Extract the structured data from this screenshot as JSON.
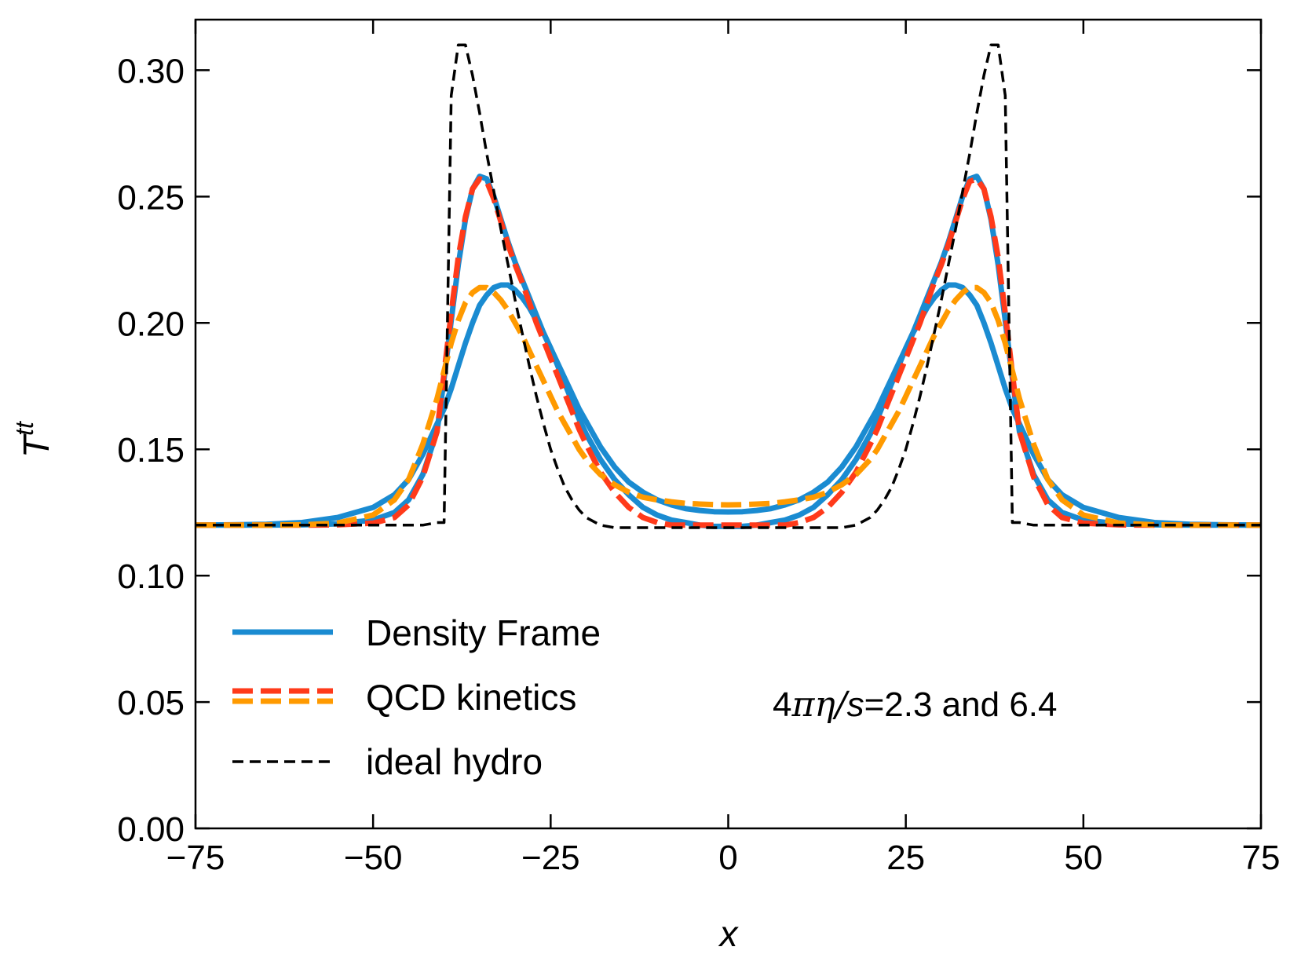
{
  "chart_data": {
    "type": "line",
    "title": "",
    "xlabel": "x",
    "ylabel": "T",
    "ylabel_superscript": "tt",
    "xlim": [
      -75,
      75
    ],
    "ylim": [
      0,
      0.32
    ],
    "x_ticks": [
      -75,
      -50,
      -25,
      0,
      25,
      50,
      75
    ],
    "x_tick_labels": [
      "−75",
      "−50",
      "−25",
      "0",
      "25",
      "50",
      "75"
    ],
    "y_ticks": [
      0,
      0.05,
      0.1,
      0.15,
      0.2,
      0.25,
      0.3
    ],
    "y_tick_labels": [
      "0.00",
      "0.05",
      "0.10",
      "0.15",
      "0.20",
      "0.25",
      "0.30"
    ],
    "grid": false,
    "legend_position": "lower-left",
    "legend": [
      {
        "label": "Density Frame",
        "style": "solid",
        "colors": [
          "#1a8bd1"
        ]
      },
      {
        "label": "QCD kinetics",
        "style": "dashed",
        "colors": [
          "#ff3a1a",
          "#ff9a00"
        ]
      },
      {
        "label": "ideal hydro",
        "style": "dashed-thin",
        "colors": [
          "#000000"
        ]
      }
    ],
    "annotation": {
      "pre": "4",
      "math": "πη/",
      "var": "s",
      "post": "=2.3 and 6.4"
    },
    "x": [
      -75,
      -70,
      -65,
      -60,
      -55,
      -50,
      -47,
      -45,
      -43,
      -41,
      -40,
      -39,
      -38,
      -37,
      -36,
      -35,
      -34,
      -33,
      -32,
      -31,
      -30,
      -29,
      -28,
      -27,
      -26,
      -25,
      -24,
      -23,
      -22,
      -21,
      -20,
      -18,
      -16,
      -14,
      -12,
      -10,
      -8,
      -6,
      -4,
      -2,
      0,
      2,
      4,
      6,
      8,
      10,
      12,
      14,
      16,
      18,
      20,
      21,
      22,
      23,
      24,
      25,
      26,
      27,
      28,
      29,
      30,
      31,
      32,
      33,
      34,
      35,
      36,
      37,
      38,
      39,
      40,
      41,
      43,
      45,
      47,
      50,
      55,
      60,
      65,
      70,
      75
    ],
    "series": [
      {
        "name": "Density Frame (4πη/s=2.3)",
        "color": "#1a8bd1",
        "style": "solid",
        "values": [
          0.12,
          0.12,
          0.12,
          0.1201,
          0.1205,
          0.122,
          0.125,
          0.13,
          0.14,
          0.157,
          0.178,
          0.201,
          0.223,
          0.241,
          0.253,
          0.258,
          0.257,
          0.25,
          0.241,
          0.232,
          0.224,
          0.217,
          0.21,
          0.203,
          0.196,
          0.19,
          0.183,
          0.176,
          0.169,
          0.162,
          0.156,
          0.146,
          0.138,
          0.132,
          0.127,
          0.124,
          0.122,
          0.121,
          0.12,
          0.1195,
          0.1195,
          0.1195,
          0.12,
          0.121,
          0.122,
          0.124,
          0.127,
          0.132,
          0.138,
          0.146,
          0.156,
          0.162,
          0.169,
          0.176,
          0.183,
          0.19,
          0.196,
          0.203,
          0.21,
          0.217,
          0.224,
          0.232,
          0.241,
          0.25,
          0.257,
          0.258,
          0.253,
          0.241,
          0.223,
          0.201,
          0.178,
          0.157,
          0.14,
          0.13,
          0.125,
          0.122,
          0.1205,
          0.1201,
          0.12,
          0.12,
          0.12
        ]
      },
      {
        "name": "QCD kinetics (4πη/s=2.3)",
        "color": "#ff3a1a",
        "style": "dashed",
        "values": [
          0.12,
          0.12,
          0.12,
          0.12,
          0.1201,
          0.1208,
          0.123,
          0.128,
          0.139,
          0.157,
          0.18,
          0.204,
          0.226,
          0.242,
          0.253,
          0.257,
          0.256,
          0.249,
          0.24,
          0.231,
          0.223,
          0.216,
          0.208,
          0.2,
          0.193,
          0.186,
          0.179,
          0.172,
          0.165,
          0.158,
          0.152,
          0.141,
          0.133,
          0.127,
          0.123,
          0.121,
          0.12,
          0.12,
          0.12,
          0.12,
          0.12,
          0.12,
          0.12,
          0.12,
          0.12,
          0.121,
          0.123,
          0.127,
          0.133,
          0.141,
          0.152,
          0.158,
          0.165,
          0.172,
          0.179,
          0.186,
          0.193,
          0.2,
          0.208,
          0.216,
          0.223,
          0.231,
          0.24,
          0.249,
          0.256,
          0.257,
          0.253,
          0.242,
          0.226,
          0.204,
          0.18,
          0.157,
          0.139,
          0.128,
          0.123,
          0.1208,
          0.1201,
          0.12,
          0.12,
          0.12,
          0.12
        ]
      },
      {
        "name": "Density Frame (4πη/s=6.4)",
        "color": "#1a8bd1",
        "style": "solid",
        "values": [
          0.12,
          0.1201,
          0.1203,
          0.121,
          0.123,
          0.127,
          0.132,
          0.138,
          0.148,
          0.16,
          0.166,
          0.174,
          0.183,
          0.192,
          0.2,
          0.207,
          0.211,
          0.214,
          0.215,
          0.215,
          0.213,
          0.21,
          0.206,
          0.201,
          0.196,
          0.19,
          0.184,
          0.178,
          0.172,
          0.166,
          0.161,
          0.151,
          0.143,
          0.137,
          0.133,
          0.13,
          0.128,
          0.1265,
          0.1258,
          0.1253,
          0.1252,
          0.1253,
          0.1258,
          0.1265,
          0.128,
          0.13,
          0.133,
          0.137,
          0.143,
          0.151,
          0.161,
          0.166,
          0.172,
          0.178,
          0.184,
          0.19,
          0.196,
          0.201,
          0.206,
          0.21,
          0.213,
          0.215,
          0.215,
          0.214,
          0.211,
          0.207,
          0.2,
          0.192,
          0.183,
          0.174,
          0.166,
          0.16,
          0.148,
          0.138,
          0.132,
          0.127,
          0.123,
          0.121,
          0.1203,
          0.1201,
          0.12
        ]
      },
      {
        "name": "QCD kinetics (4πη/s=6.4)",
        "color": "#ff9a00",
        "style": "dashed",
        "values": [
          0.12,
          0.12,
          0.12,
          0.1201,
          0.1208,
          0.124,
          0.13,
          0.138,
          0.152,
          0.17,
          0.181,
          0.192,
          0.201,
          0.208,
          0.212,
          0.214,
          0.214,
          0.212,
          0.209,
          0.205,
          0.2,
          0.195,
          0.189,
          0.183,
          0.177,
          0.171,
          0.165,
          0.16,
          0.155,
          0.15,
          0.146,
          0.14,
          0.136,
          0.133,
          0.131,
          0.13,
          0.1292,
          0.1286,
          0.1283,
          0.1281,
          0.128,
          0.1281,
          0.1283,
          0.1286,
          0.1292,
          0.13,
          0.131,
          0.133,
          0.136,
          0.14,
          0.146,
          0.15,
          0.155,
          0.16,
          0.165,
          0.171,
          0.177,
          0.183,
          0.189,
          0.195,
          0.2,
          0.205,
          0.209,
          0.212,
          0.214,
          0.214,
          0.212,
          0.208,
          0.201,
          0.192,
          0.181,
          0.17,
          0.152,
          0.138,
          0.13,
          0.124,
          0.1208,
          0.1201,
          0.12,
          0.12,
          0.12
        ]
      },
      {
        "name": "ideal hydro",
        "color": "#000000",
        "style": "dashed-thin",
        "values": [
          0.12,
          0.12,
          0.12,
          0.12,
          0.12,
          0.12,
          0.12,
          0.12,
          0.12,
          0.121,
          0.121,
          0.29,
          0.31,
          0.31,
          0.298,
          0.283,
          0.267,
          0.252,
          0.237,
          0.223,
          0.209,
          0.196,
          0.183,
          0.171,
          0.16,
          0.15,
          0.142,
          0.135,
          0.13,
          0.126,
          0.123,
          0.12,
          0.119,
          0.119,
          0.119,
          0.119,
          0.119,
          0.119,
          0.119,
          0.119,
          0.119,
          0.119,
          0.119,
          0.119,
          0.119,
          0.119,
          0.119,
          0.119,
          0.119,
          0.12,
          0.123,
          0.126,
          0.13,
          0.135,
          0.142,
          0.15,
          0.16,
          0.171,
          0.183,
          0.196,
          0.209,
          0.223,
          0.237,
          0.252,
          0.267,
          0.283,
          0.298,
          0.31,
          0.31,
          0.29,
          0.121,
          0.121,
          0.12,
          0.12,
          0.12,
          0.12,
          0.12,
          0.12,
          0.12,
          0.12,
          0.12
        ]
      }
    ]
  }
}
